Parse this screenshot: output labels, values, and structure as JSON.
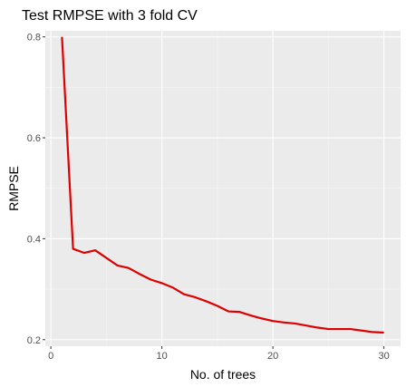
{
  "chart_data": {
    "type": "line",
    "title": "Test RMPSE with 3 fold CV",
    "xlabel": "No. of trees",
    "ylabel": "RMPSE",
    "xlim": [
      -0.5,
      31.5
    ],
    "ylim": [
      0.187,
      0.812
    ],
    "x_ticks": [
      0,
      10,
      20,
      30
    ],
    "x_tick_labels": [
      "0",
      "10",
      "20",
      "30"
    ],
    "y_ticks": [
      0.2,
      0.4,
      0.6,
      0.8
    ],
    "y_tick_labels": [
      "0.2",
      "0.4",
      "0.6",
      "0.8"
    ],
    "grid": true,
    "legend": "none",
    "colors": {
      "panel_background": "#ebebeb",
      "grid_major": "#ffffff",
      "grid_minor": "#f5f5f5",
      "tick_color": "#333333",
      "line": "#dd0000"
    },
    "series": [
      {
        "x": [
          1,
          2,
          3,
          4,
          5,
          6,
          7,
          8,
          9,
          10,
          11,
          12,
          13,
          14,
          15,
          16,
          17,
          18,
          19,
          20,
          21,
          22,
          23,
          24,
          25,
          26,
          27,
          28,
          29,
          30
        ],
        "values": [
          0.8,
          0.38,
          0.372,
          0.377,
          0.362,
          0.347,
          0.342,
          0.33,
          0.319,
          0.312,
          0.303,
          0.29,
          0.284,
          0.276,
          0.267,
          0.256,
          0.255,
          0.248,
          0.242,
          0.237,
          0.234,
          0.232,
          0.228,
          0.224,
          0.221,
          0.221,
          0.221,
          0.218,
          0.215,
          0.214
        ]
      }
    ]
  }
}
